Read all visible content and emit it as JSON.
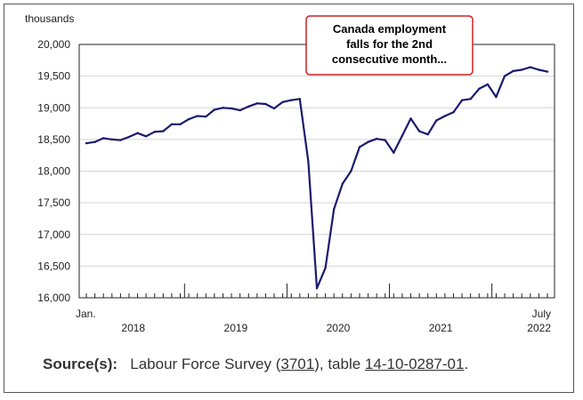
{
  "chart_data": {
    "type": "line",
    "title": "Canada employment falls for the 2nd consecutive month...",
    "title_lines": [
      "Canada employment",
      "falls for the 2nd",
      "consecutive month..."
    ],
    "ylabel": "thousands",
    "xlabel": "",
    "ylim": [
      16000,
      20000
    ],
    "yticks": [
      16000,
      16500,
      17000,
      17500,
      18000,
      18500,
      19000,
      19500,
      20000
    ],
    "ytick_labels": [
      "16,000",
      "16,500",
      "17,000",
      "17,500",
      "18,000",
      "18,500",
      "19,000",
      "19,500",
      "20,000"
    ],
    "start_label": "Jan.",
    "end_label": "July",
    "year_labels": [
      "2018",
      "2019",
      "2020",
      "2021",
      "2022"
    ],
    "grid": "horizontal",
    "legend": "none",
    "series": [
      {
        "name": "Employment",
        "color": "#1a1a6e",
        "values": [
          18440,
          18460,
          18520,
          18500,
          18490,
          18540,
          18600,
          18550,
          18620,
          18630,
          18740,
          18740,
          18820,
          18870,
          18860,
          18970,
          19000,
          18990,
          18960,
          19020,
          19070,
          19060,
          18990,
          19090,
          19120,
          19140,
          18150,
          16150,
          16470,
          17400,
          17800,
          18000,
          18380,
          18460,
          18510,
          18490,
          18290,
          18560,
          18830,
          18630,
          18580,
          18800,
          18870,
          18930,
          19120,
          19140,
          19300,
          19370,
          19170,
          19500,
          19580,
          19600,
          19640,
          19600,
          19570
        ]
      }
    ]
  },
  "source": {
    "label": "Source(s):",
    "prefix": "Labour Force Survey (",
    "survey_link": "3701",
    "middle": "), table ",
    "table_link": "14-10-0287-01",
    "suffix": "."
  },
  "colors": {
    "line": "#1a1a6e",
    "grid": "#d4d4d4",
    "callout_border": "#cc2222"
  }
}
